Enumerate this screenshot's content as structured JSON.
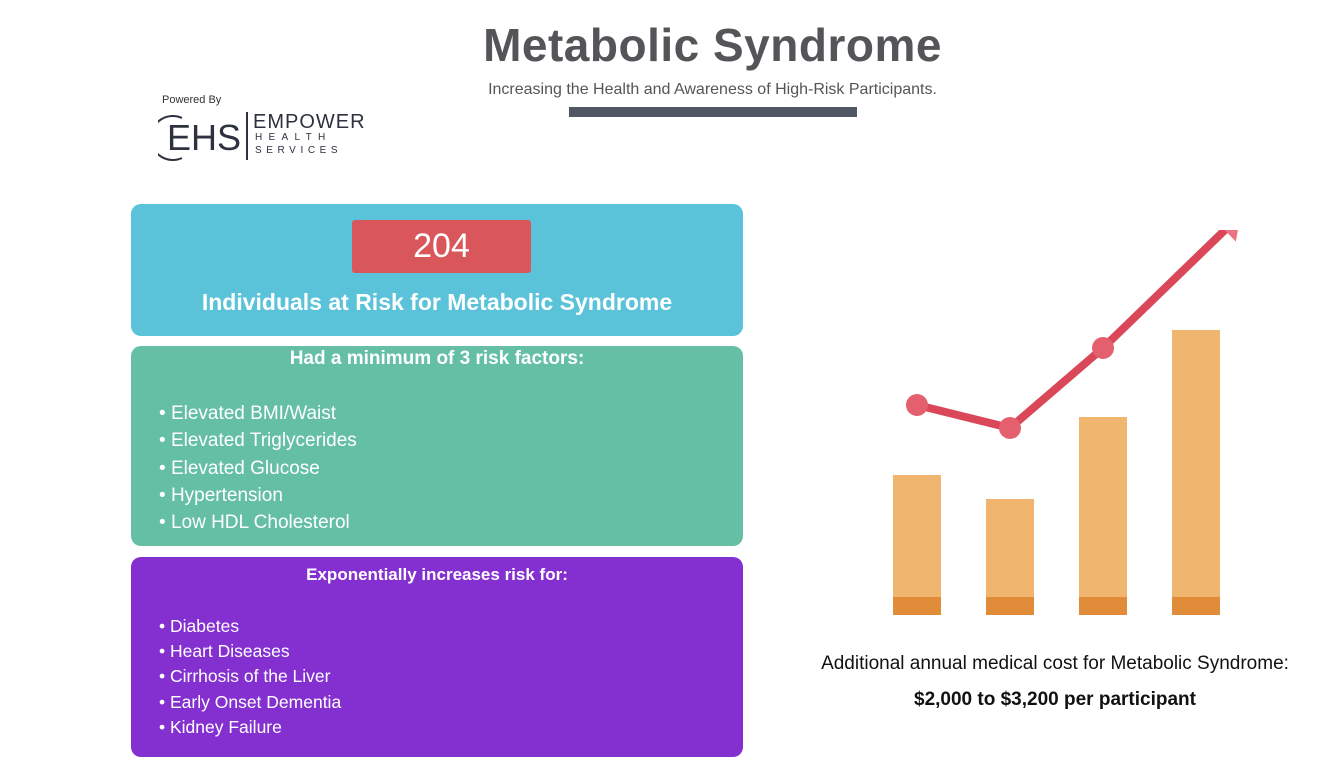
{
  "header": {
    "title": "Metabolic Syndrome",
    "subtitle": "Increasing the Health and Awareness of High-Risk Participants."
  },
  "logo": {
    "powered_by": "Powered By",
    "mark": "EHS",
    "brand_line1": "EMPOWER",
    "brand_line2": "HEALTH",
    "brand_line3": "SERVICES"
  },
  "risk_card": {
    "count": "204",
    "label": "Individuals at Risk for Metabolic Syndrome"
  },
  "factors_card": {
    "heading": "Had a minimum of 3 risk factors:",
    "items": [
      "Elevated BMI/Waist",
      "Elevated Triglycerides",
      "Elevated Glucose",
      "Hypertension",
      "Low HDL Cholesterol"
    ]
  },
  "risks_card": {
    "heading": "Exponentially increases risk for:",
    "items": [
      "Diabetes",
      "Heart Diseases",
      "Cirrhosis of the Liver",
      "Early Onset Dementia",
      "Kidney Failure"
    ]
  },
  "cost": {
    "label": "Additional annual medical cost for Metabolic Syndrome:",
    "range": "$2,000 to $3,200 per participant"
  },
  "colors": {
    "blue_card": "#5bc3d9",
    "count_box": "#d9565a",
    "green_card": "#65bfa4",
    "purple_card": "#8430d1",
    "bar": "#f0b56f",
    "bar_base": "#e08c38",
    "trend_line": "#d94759",
    "title_rule": "#505763"
  },
  "chart_data": {
    "type": "bar",
    "categories": [
      "",
      "",
      "",
      ""
    ],
    "values": [
      140,
      116,
      198,
      285
    ],
    "trend_line": [
      210,
      187,
      267,
      357
    ],
    "trend_arrow": true,
    "axes_visible": false,
    "grid": false
  }
}
